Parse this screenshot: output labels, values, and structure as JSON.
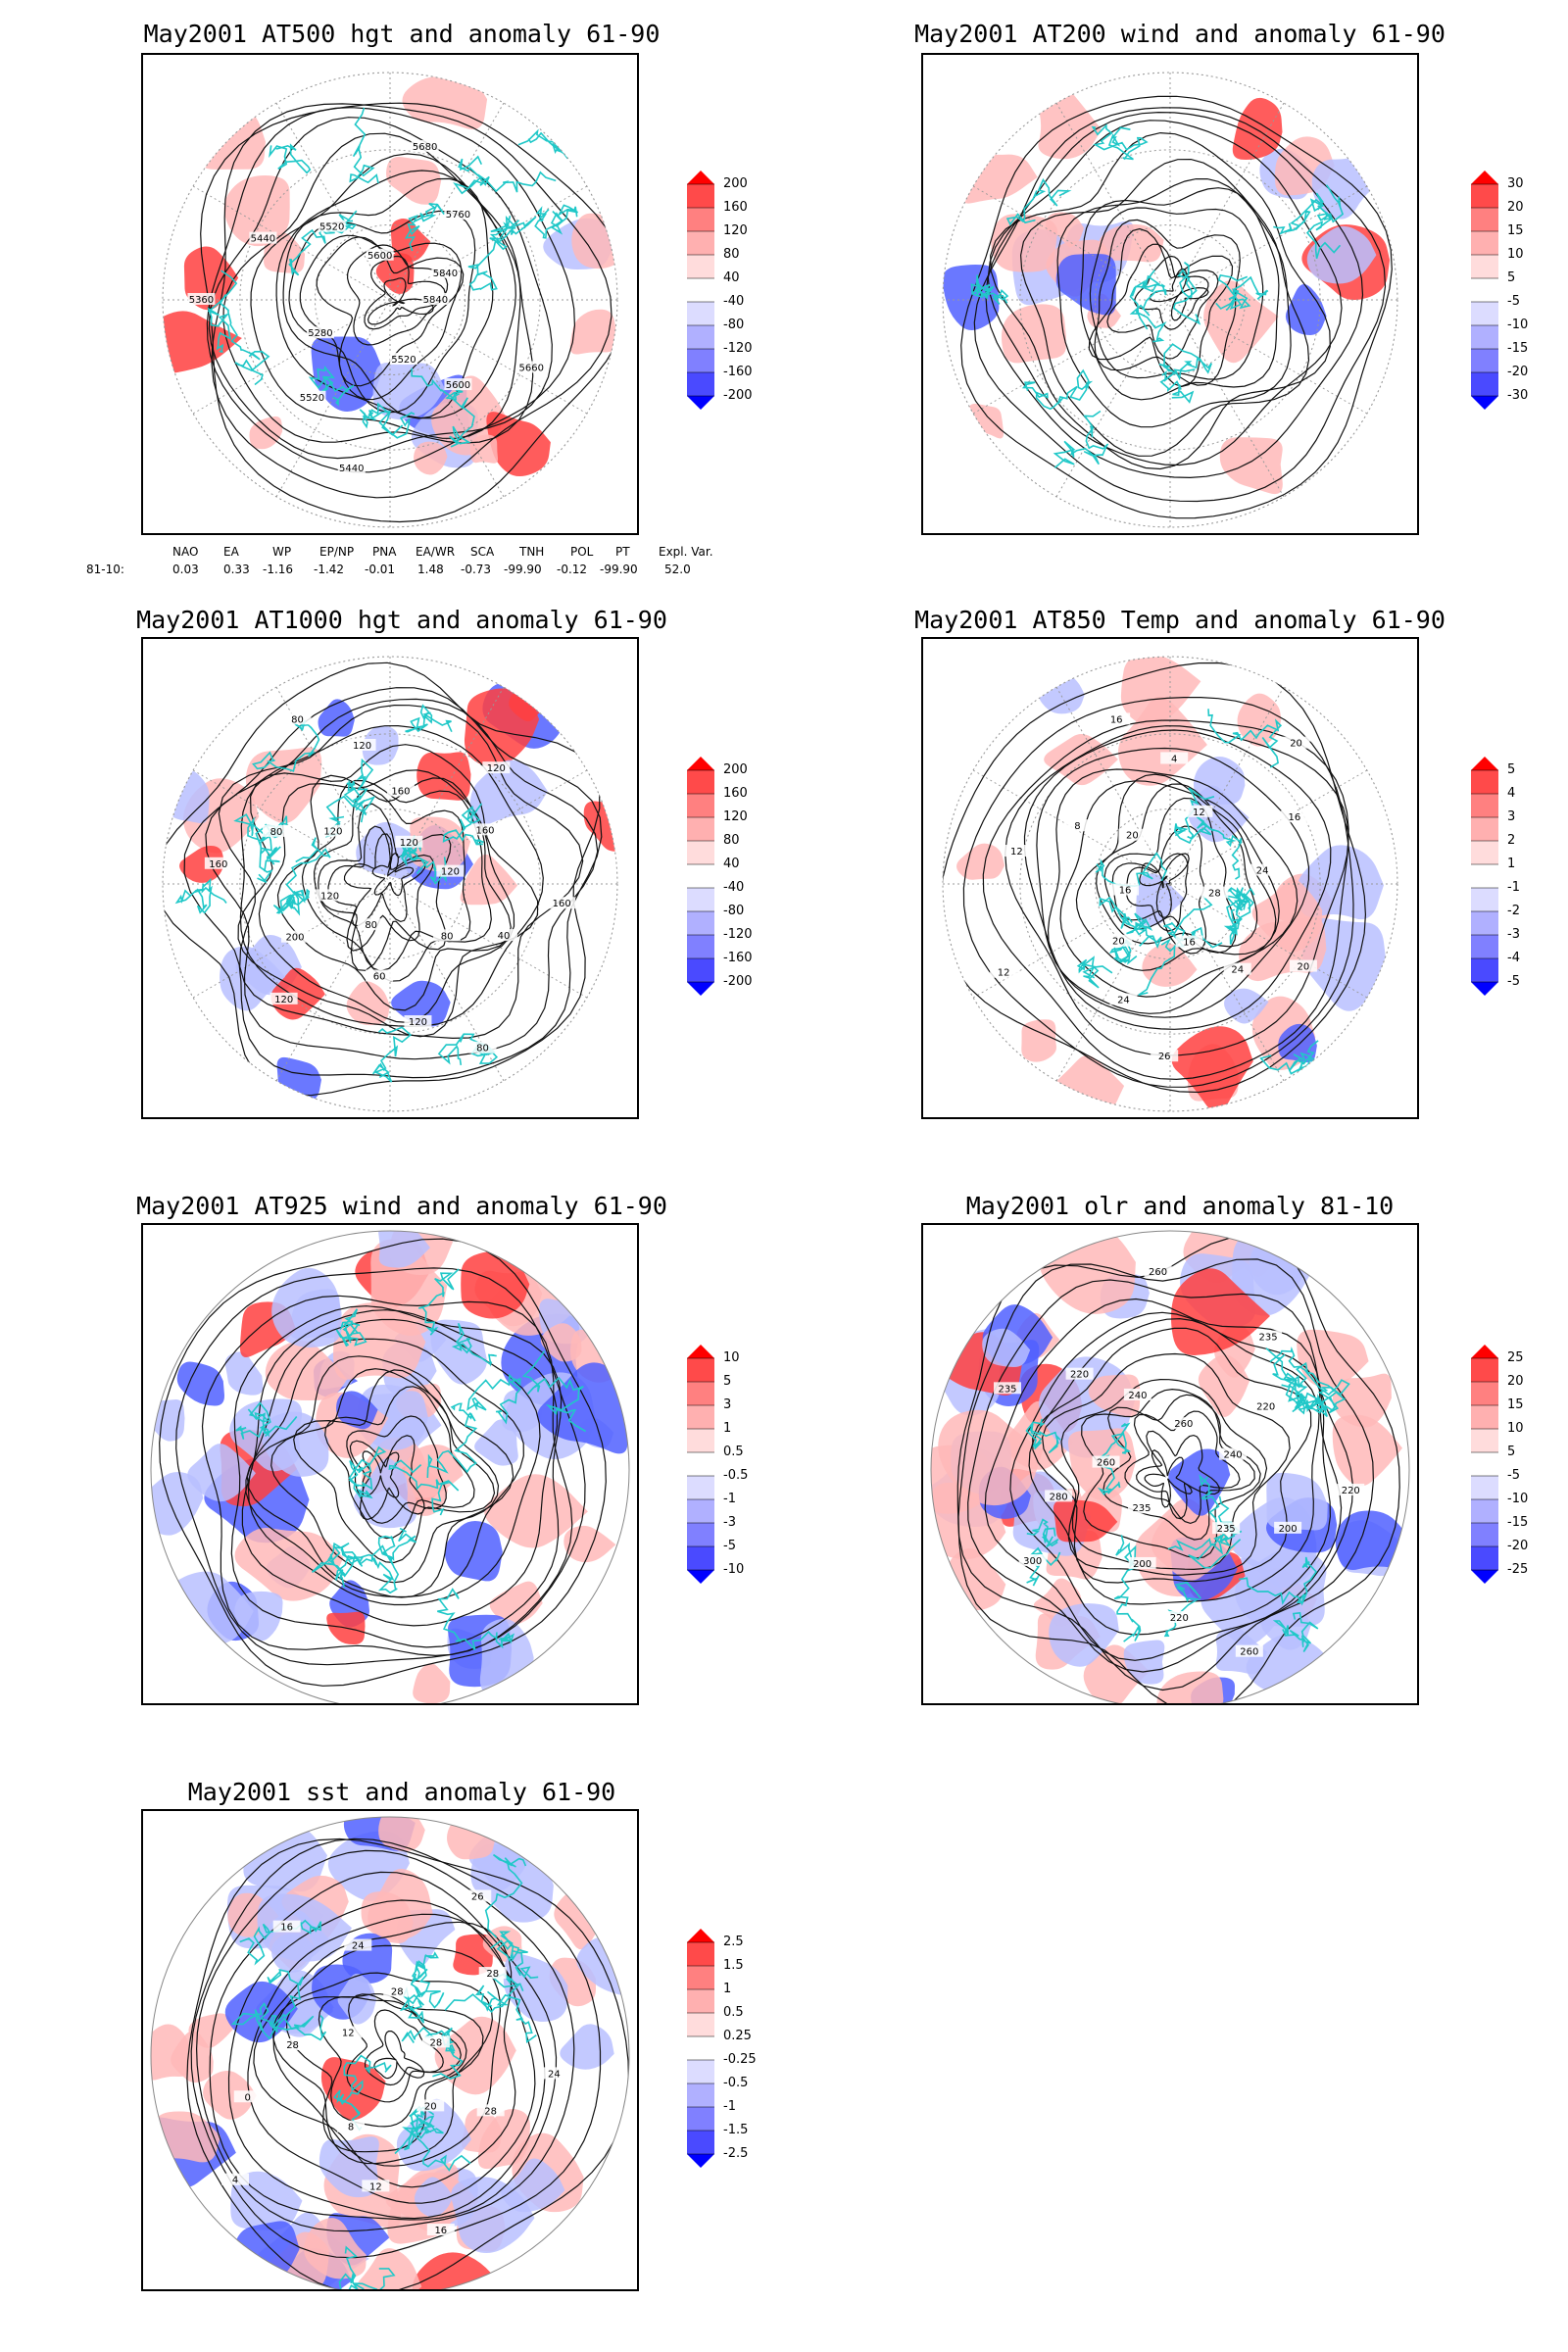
{
  "panels": [
    {
      "id": "p1",
      "title": "May2001 AT500 hgt and anomaly 61-90",
      "colorbar": [
        "200",
        "160",
        "120",
        "80",
        "40",
        "-40",
        "-80",
        "-120",
        "-160",
        "-200"
      ],
      "contour_labels": [
        "5840",
        "5660",
        "5600",
        "5520",
        "5440",
        "5520",
        "5280",
        "5360",
        "5440",
        "5520",
        "5600",
        "5680",
        "5760",
        "5840"
      ]
    },
    {
      "id": "p2",
      "title": "May2001 AT200 wind and anomaly 61-90",
      "colorbar": [
        "30",
        "20",
        "15",
        "10",
        "5",
        "-5",
        "-10",
        "-15",
        "-20",
        "-30"
      ],
      "contour_labels": []
    },
    {
      "id": "p3",
      "title": "May2001 AT1000 hgt and anomaly 61-90",
      "colorbar": [
        "200",
        "160",
        "120",
        "80",
        "40",
        "-40",
        "-80",
        "-120",
        "-160",
        "-200"
      ],
      "contour_labels": [
        "80",
        "120",
        "200",
        "120",
        "160",
        "80",
        "120",
        "80",
        "120",
        "160",
        "120",
        "120",
        "160",
        "120",
        "160",
        "40",
        "80",
        "80",
        "120",
        "60"
      ]
    },
    {
      "id": "p4",
      "title": "May2001 AT850 Temp and anomaly 61-90",
      "colorbar": [
        "5",
        "4",
        "3",
        "2",
        "1",
        "-1",
        "-2",
        "-3",
        "-4",
        "-5"
      ],
      "contour_labels": [
        "16",
        "12",
        "8",
        "20",
        "16",
        "4",
        "12",
        "20",
        "16",
        "24",
        "28",
        "20",
        "24",
        "16",
        "26",
        "24",
        "20",
        "12"
      ]
    },
    {
      "id": "p5",
      "title": "May2001 AT925 wind and anomaly 61-90",
      "colorbar": [
        "10",
        "5",
        "3",
        "1",
        "0.5",
        "-0.5",
        "-1",
        "-3",
        "-5",
        "-10"
      ],
      "contour_labels": []
    },
    {
      "id": "p6",
      "title": "May2001 olr and anomaly 81-10",
      "colorbar": [
        "25",
        "20",
        "15",
        "10",
        "5",
        "-5",
        "-10",
        "-15",
        "-20",
        "-25"
      ],
      "contour_labels": [
        "260",
        "235",
        "220",
        "240",
        "220",
        "200",
        "235",
        "260",
        "220",
        "200",
        "235",
        "300",
        "280",
        "260",
        "235",
        "220",
        "240",
        "260"
      ]
    },
    {
      "id": "p7",
      "title": "May2001 sst and anomaly 61-90",
      "colorbar": [
        "2.5",
        "1.5",
        "1",
        "0.5",
        "0.25",
        "-0.25",
        "-0.5",
        "-1",
        "-1.5",
        "-2.5"
      ],
      "contour_labels": [
        "28",
        "24",
        "28",
        "20",
        "16",
        "12",
        "8",
        "4",
        "0",
        "28",
        "12",
        "16",
        "24",
        "28",
        "26",
        "28"
      ]
    }
  ],
  "teleconnection_table": {
    "headers": [
      "NAO",
      "EA",
      "WP",
      "EP/NP",
      "PNA",
      "EA/WR",
      "SCA",
      "TNH",
      "POL",
      "PT",
      "Expl. Var."
    ],
    "row_label": "81-10:",
    "values": [
      "0.03",
      "0.33",
      "-1.16",
      "-1.42",
      "-0.01",
      "1.48",
      "-0.73",
      "-99.90",
      "-0.12",
      "-99.90",
      "52.0"
    ]
  },
  "colors": {
    "land_outline": "#20c8c8",
    "contour": "#111111",
    "positive": "#ff2020",
    "negative": "#2040ff",
    "grid": "#999999"
  }
}
